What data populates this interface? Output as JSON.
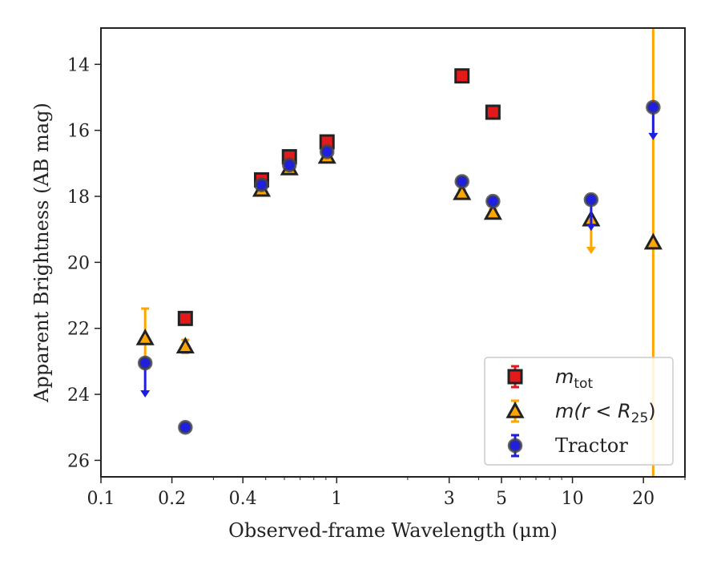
{
  "chart_data": {
    "type": "scatter",
    "title": "",
    "xlabel": "Observed-frame Wavelength (μm)",
    "ylabel": "Apparent Brightness (AB mag)",
    "xscale": "log",
    "xlim": [
      0.1,
      30
    ],
    "ylim": [
      26.5,
      12.9
    ],
    "x_ticks": [
      {
        "value": 0.1,
        "label": "0.1"
      },
      {
        "value": 0.2,
        "label": "0.2"
      },
      {
        "value": 0.4,
        "label": "0.4"
      },
      {
        "value": 1,
        "label": "1"
      },
      {
        "value": 3,
        "label": "3"
      },
      {
        "value": 5,
        "label": "5"
      },
      {
        "value": 10,
        "label": "10"
      },
      {
        "value": 20,
        "label": "20"
      }
    ],
    "y_ticks": [
      {
        "value": 14,
        "label": "14"
      },
      {
        "value": 16,
        "label": "16"
      },
      {
        "value": 18,
        "label": "18"
      },
      {
        "value": 20,
        "label": "20"
      },
      {
        "value": 22,
        "label": "22"
      },
      {
        "value": 24,
        "label": "24"
      },
      {
        "value": 26,
        "label": "26"
      }
    ],
    "legend_position": "lower-right",
    "series": [
      {
        "name": "m_tot",
        "legend_main": "m",
        "legend_sub": "tot",
        "marker": "square",
        "color": "#e31a1c",
        "points": [
          {
            "x": 0.228,
            "y": 21.7,
            "yerr": 0.1
          },
          {
            "x": 0.48,
            "y": 17.5,
            "yerr": 0.05
          },
          {
            "x": 0.63,
            "y": 16.8,
            "yerr": 0.05
          },
          {
            "x": 0.91,
            "y": 16.35,
            "yerr": 0.05
          },
          {
            "x": 3.4,
            "y": 14.35,
            "yerr": 0.05
          },
          {
            "x": 4.6,
            "y": 15.45,
            "yerr": 0.05
          }
        ]
      },
      {
        "name": "m(r < R25)",
        "legend_main": "m(r < R",
        "legend_sub": "25",
        "legend_tail": ")",
        "marker": "triangle",
        "color": "#ffa500",
        "points": [
          {
            "x": 0.154,
            "y": 22.3,
            "yerr": 0.9
          },
          {
            "x": 0.228,
            "y": 22.55,
            "yerr": 0.2
          },
          {
            "x": 0.48,
            "y": 17.8,
            "yerr": 0.1
          },
          {
            "x": 0.63,
            "y": 17.15,
            "yerr": 0.1
          },
          {
            "x": 0.91,
            "y": 16.8,
            "yerr": 0.1
          },
          {
            "x": 3.4,
            "y": 17.9,
            "yerr": 0.1
          },
          {
            "x": 4.6,
            "y": 18.5,
            "yerr": 0.1
          },
          {
            "x": 12.0,
            "y": 18.7,
            "upper_limit_to": 19.65
          },
          {
            "x": 22.0,
            "y": 19.4,
            "yerr": 40
          }
        ]
      },
      {
        "name": "Tractor",
        "legend_main": "Tractor",
        "marker": "circle",
        "color": "#1f1fe0",
        "points": [
          {
            "x": 0.154,
            "y": 23.05,
            "upper_limit_to": 24.0
          },
          {
            "x": 0.228,
            "y": 25.0,
            "yerr": 0.05
          },
          {
            "x": 0.48,
            "y": 17.65,
            "yerr": 0.1
          },
          {
            "x": 0.63,
            "y": 17.05,
            "yerr": 0.1
          },
          {
            "x": 0.91,
            "y": 16.65,
            "yerr": 0.1
          },
          {
            "x": 3.4,
            "y": 17.55,
            "yerr": 0.1
          },
          {
            "x": 4.6,
            "y": 18.15,
            "yerr": 0.1
          },
          {
            "x": 12.0,
            "y": 18.1,
            "upper_limit_to": 18.95
          },
          {
            "x": 22.0,
            "y": 15.3,
            "upper_limit_to": 16.2
          }
        ]
      }
    ]
  }
}
